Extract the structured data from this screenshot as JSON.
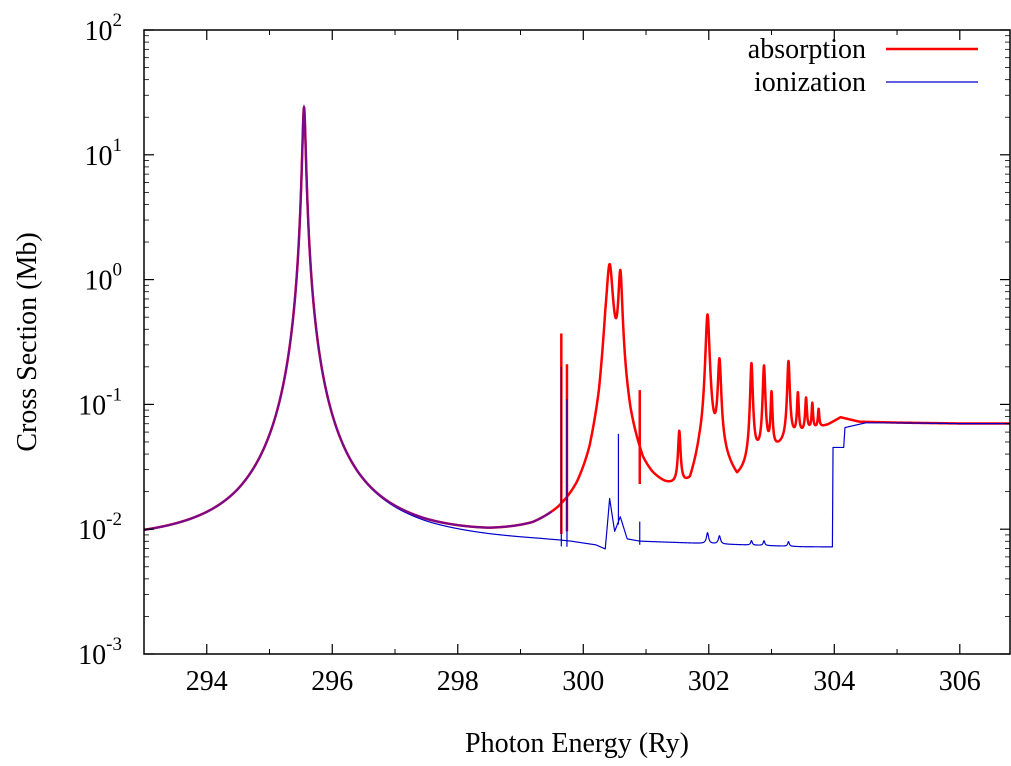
{
  "chart_data": {
    "type": "line",
    "xlabel": "Photon Energy (Ry)",
    "ylabel": "Cross Section (Mb)",
    "xlim": [
      293,
      306.8
    ],
    "ylim": [
      0.001,
      100
    ],
    "yscale": "log",
    "grid": false,
    "legend_position": "top-right",
    "x_ticks": [
      294,
      296,
      298,
      300,
      302,
      304,
      306
    ],
    "y_ticks": [
      {
        "value": 0.001,
        "base": "10",
        "exp": "-3"
      },
      {
        "value": 0.01,
        "base": "10",
        "exp": "-2"
      },
      {
        "value": 0.1,
        "base": "10",
        "exp": "-1"
      },
      {
        "value": 1,
        "base": "10",
        "exp": "0"
      },
      {
        "value": 10,
        "base": "10",
        "exp": "1"
      },
      {
        "value": 100,
        "base": "10",
        "exp": "2"
      }
    ],
    "series": [
      {
        "name": "absorption",
        "color": "#ff0000",
        "width": 2.5,
        "baseline": [
          [
            293.0,
            0.0075
          ],
          [
            294.5,
            0.0074
          ],
          [
            295.2,
            0.0079
          ],
          [
            295.7,
            0.0095
          ],
          [
            296.4,
            0.0083
          ],
          [
            297.5,
            0.0077
          ],
          [
            298.5,
            0.0075
          ],
          [
            299.2,
            0.0078
          ],
          [
            299.6,
            0.0089
          ],
          [
            299.9,
            0.0105
          ],
          [
            300.1,
            0.014
          ],
          [
            300.25,
            0.03
          ],
          [
            300.35,
            0.15
          ],
          [
            300.6,
            0.08
          ],
          [
            300.75,
            0.035
          ],
          [
            300.95,
            0.02
          ],
          [
            301.1,
            0.018
          ],
          [
            301.3,
            0.017
          ],
          [
            301.7,
            0.017
          ],
          [
            301.85,
            0.03
          ],
          [
            302.2,
            0.035
          ],
          [
            302.45,
            0.022
          ],
          [
            302.55,
            0.026
          ],
          [
            302.7,
            0.035
          ],
          [
            303.0,
            0.04
          ],
          [
            303.3,
            0.05
          ],
          [
            303.6,
            0.06
          ],
          [
            303.9,
            0.068
          ],
          [
            304.1,
            0.078
          ],
          [
            304.4,
            0.072
          ],
          [
            305.0,
            0.071
          ],
          [
            306.0,
            0.07
          ],
          [
            306.8,
            0.07
          ]
        ],
        "peaks": [
          {
            "x": 295.55,
            "peak": 24,
            "width": 0.025
          },
          {
            "x": 300.42,
            "peak": 1.3,
            "width": 0.05
          },
          {
            "x": 300.59,
            "peak": 1.1,
            "width": 0.03
          },
          {
            "x": 301.53,
            "peak": 0.055,
            "width": 0.02
          },
          {
            "x": 301.98,
            "peak": 0.52,
            "width": 0.03
          },
          {
            "x": 302.17,
            "peak": 0.22,
            "width": 0.025
          },
          {
            "x": 302.68,
            "peak": 0.21,
            "width": 0.02
          },
          {
            "x": 302.88,
            "peak": 0.2,
            "width": 0.02
          },
          {
            "x": 303.0,
            "peak": 0.12,
            "width": 0.015
          },
          {
            "x": 303.27,
            "peak": 0.22,
            "width": 0.02
          },
          {
            "x": 303.42,
            "peak": 0.12,
            "width": 0.015
          },
          {
            "x": 303.55,
            "peak": 0.11,
            "width": 0.015
          },
          {
            "x": 303.65,
            "peak": 0.1,
            "width": 0.012
          },
          {
            "x": 303.75,
            "peak": 0.09,
            "width": 0.012
          }
        ],
        "spikes": [
          {
            "x": 299.65,
            "peak": 0.37
          },
          {
            "x": 299.74,
            "peak": 0.21
          },
          {
            "x": 300.9,
            "peak": 0.13
          }
        ]
      },
      {
        "name": "ionization",
        "color": "#0000cc",
        "width": 1.2,
        "baseline": [
          [
            293.0,
            0.0075
          ],
          [
            294.5,
            0.0074
          ],
          [
            295.2,
            0.0079
          ],
          [
            295.7,
            0.0095
          ],
          [
            296.4,
            0.0083
          ],
          [
            297.5,
            0.0077
          ],
          [
            298.5,
            0.0075
          ],
          [
            299.3,
            0.0074
          ],
          [
            299.62,
            0.0073
          ],
          [
            299.8,
            0.0072
          ],
          [
            300.2,
            0.0068
          ],
          [
            300.35,
            0.0063
          ],
          [
            300.42,
            0.017
          ],
          [
            300.5,
            0.009
          ],
          [
            300.59,
            0.012
          ],
          [
            300.7,
            0.0078
          ],
          [
            300.9,
            0.0075
          ],
          [
            301.5,
            0.0074
          ],
          [
            302.0,
            0.0073
          ],
          [
            302.5,
            0.0072
          ],
          [
            303.0,
            0.0071
          ],
          [
            303.5,
            0.007
          ],
          [
            303.97,
            0.007
          ],
          [
            303.98,
            0.045
          ],
          [
            304.15,
            0.045
          ],
          [
            304.17,
            0.065
          ],
          [
            304.5,
            0.071
          ],
          [
            305.0,
            0.071
          ],
          [
            306.0,
            0.07
          ],
          [
            306.8,
            0.07
          ]
        ],
        "peaks": [
          {
            "x": 295.55,
            "peak": 24,
            "width": 0.025
          },
          {
            "x": 301.98,
            "peak": 0.009,
            "width": 0.02
          },
          {
            "x": 302.17,
            "peak": 0.0085,
            "width": 0.02
          },
          {
            "x": 302.68,
            "peak": 0.0078,
            "width": 0.015
          },
          {
            "x": 302.88,
            "peak": 0.0078,
            "width": 0.015
          },
          {
            "x": 303.27,
            "peak": 0.0077,
            "width": 0.015
          }
        ],
        "spikes": [
          {
            "x": 299.65,
            "peak": 0.2
          },
          {
            "x": 299.74,
            "peak": 0.11
          },
          {
            "x": 300.56,
            "peak": 0.058
          },
          {
            "x": 300.9,
            "peak": 0.0115
          }
        ]
      }
    ]
  }
}
